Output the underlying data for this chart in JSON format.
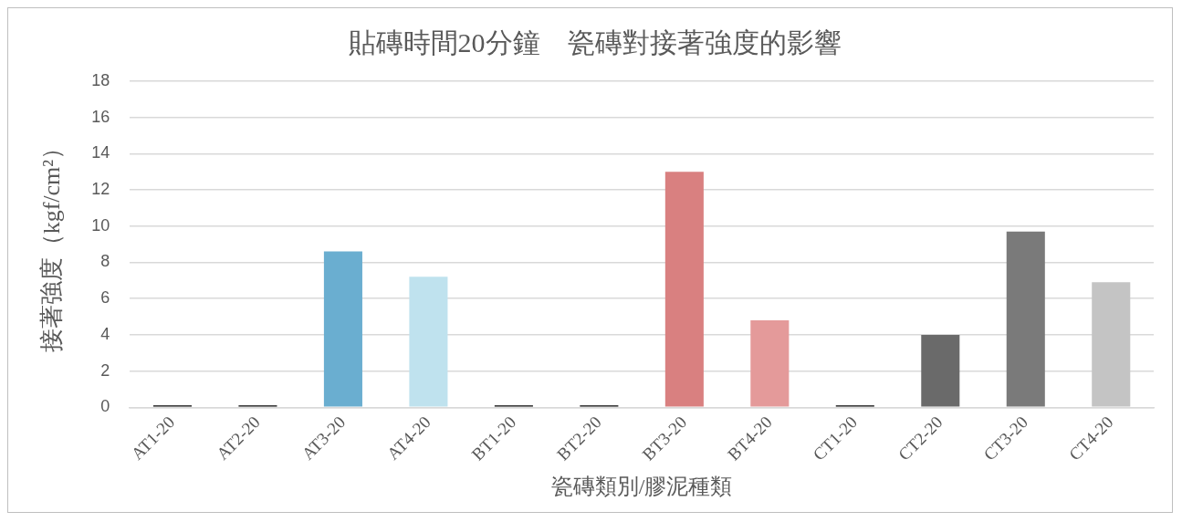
{
  "chart_data": {
    "type": "bar",
    "title": "貼磚時間20分鐘　瓷磚對接著強度的影響",
    "xlabel": "瓷磚類別/膠泥種類",
    "ylabel": "接著強度（kgf/cm²）",
    "categories": [
      "AT1-20",
      "AT2-20",
      "AT3-20",
      "AT4-20",
      "BT1-20",
      "BT2-20",
      "BT3-20",
      "BT4-20",
      "CT1-20",
      "CT2-20",
      "CT3-20",
      "CT4-20"
    ],
    "values": [
      0.1,
      0.1,
      8.6,
      7.2,
      0.1,
      0.1,
      13.0,
      4.8,
      0.1,
      4.0,
      9.7,
      6.9
    ],
    "colors": [
      "#000000",
      "#000000",
      "#6aaed0",
      "#bfe2ee",
      "#000000",
      "#000000",
      "#d98080",
      "#e49a9a",
      "#000000",
      "#6a6a6a",
      "#7a7a7a",
      "#c4c4c4"
    ],
    "ylim": [
      0,
      18
    ],
    "yticks": [
      0,
      2,
      4,
      6,
      8,
      10,
      12,
      14,
      16,
      18
    ],
    "grid": "y"
  }
}
